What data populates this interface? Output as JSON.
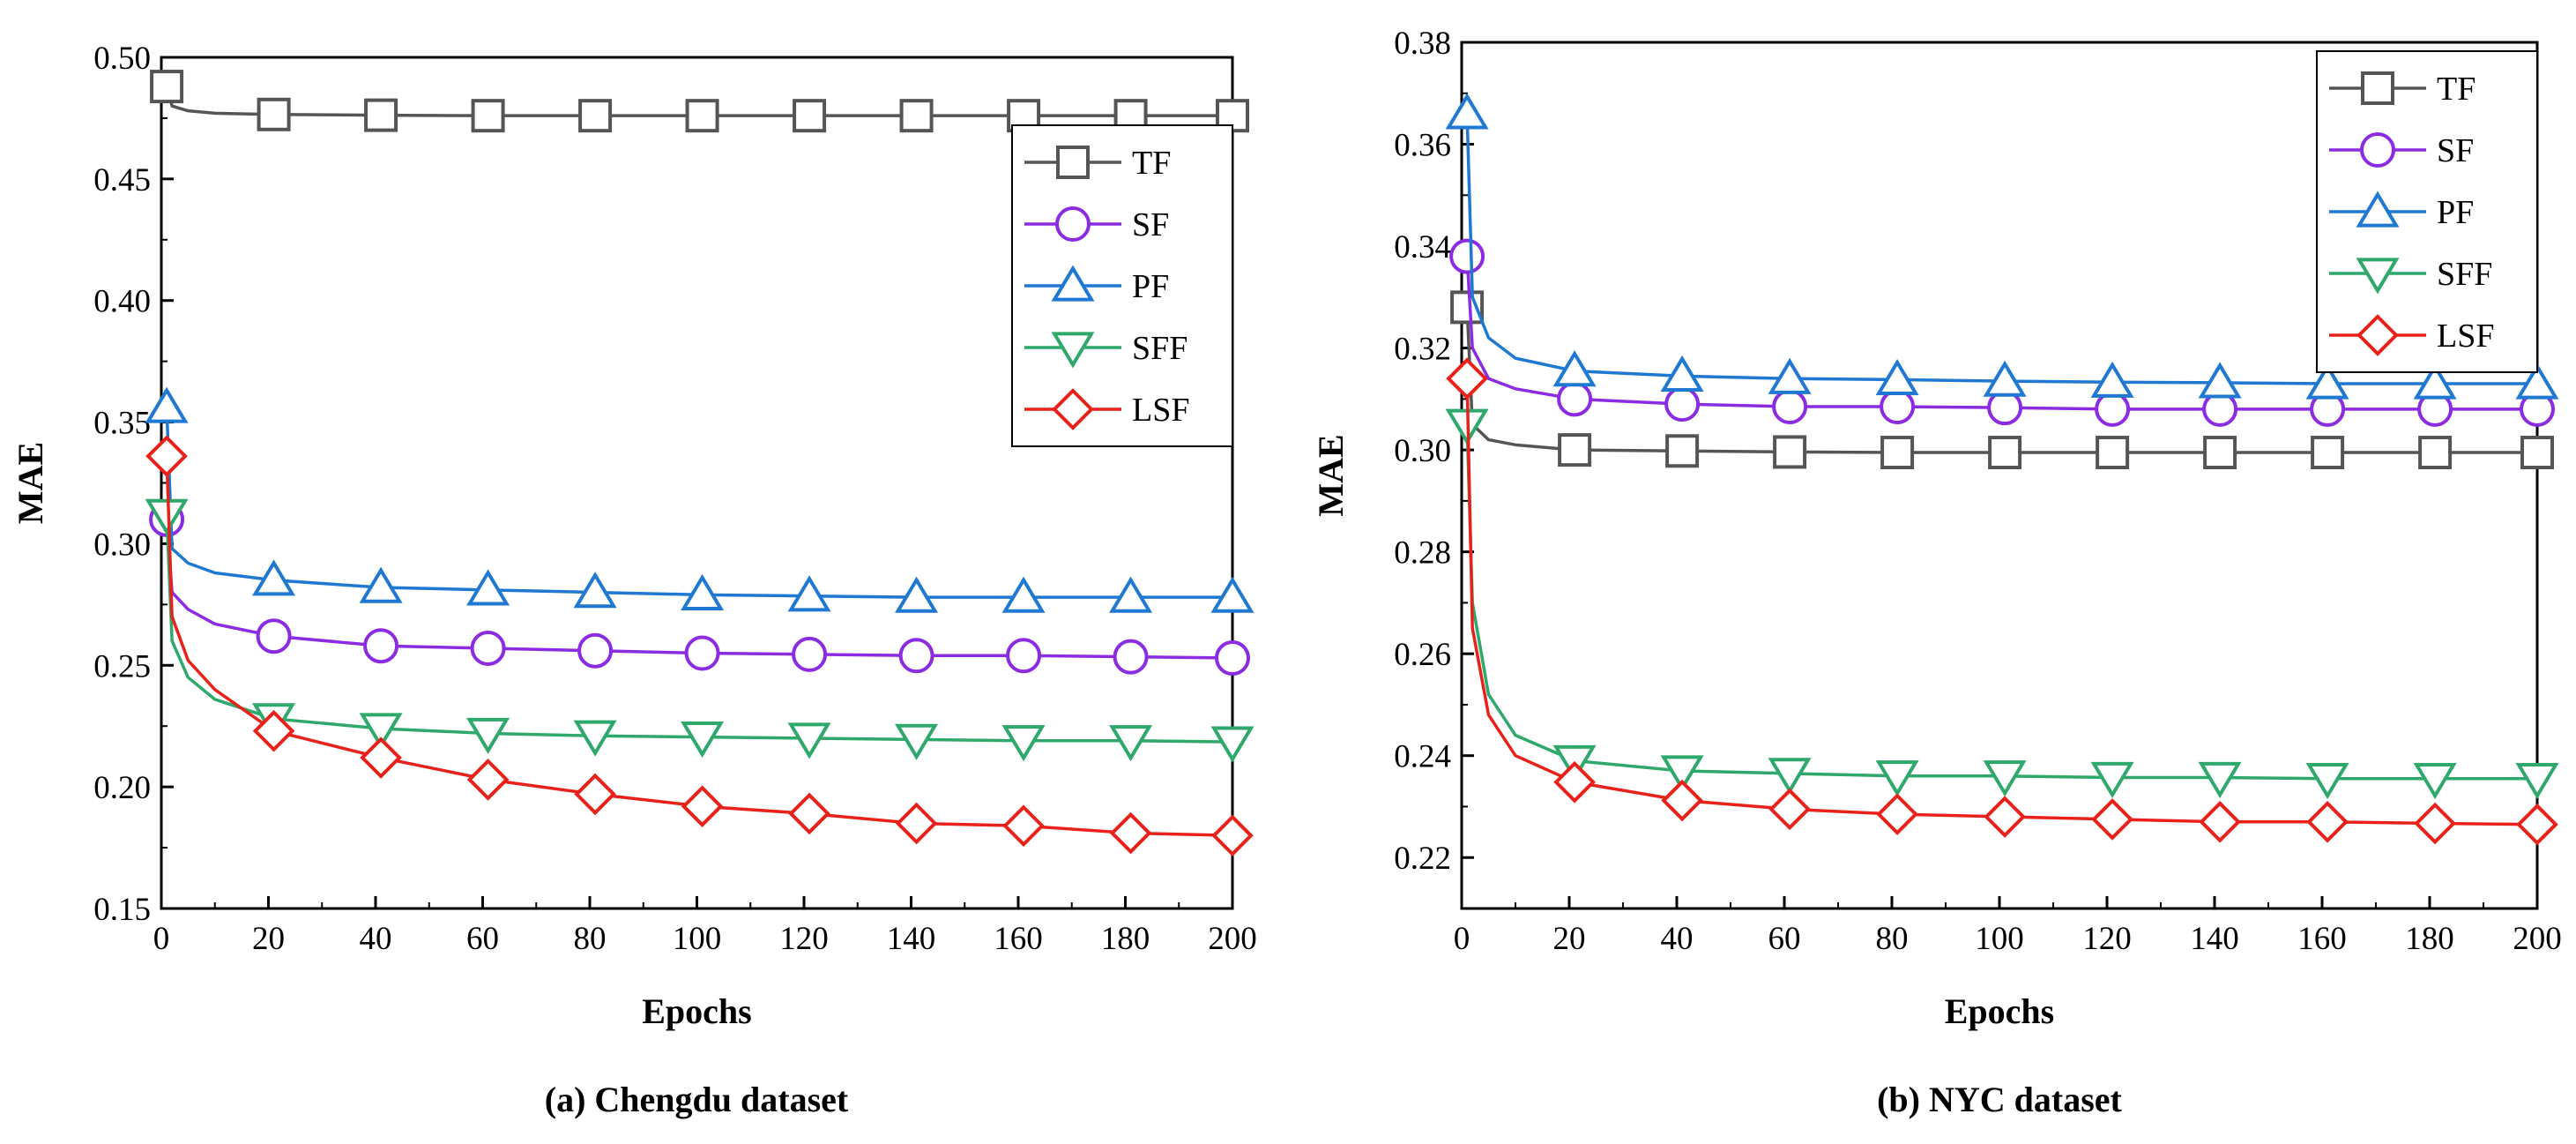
{
  "chart_data": [
    {
      "type": "line",
      "caption": "(a) Chengdu dataset",
      "xlabel": "Epochs",
      "ylabel": "MAE",
      "xlim": [
        0,
        200
      ],
      "ylim": [
        0.15,
        0.5
      ],
      "xticks": [
        0,
        20,
        40,
        60,
        80,
        100,
        120,
        140,
        160,
        180,
        200
      ],
      "yticks": [
        0.15,
        0.2,
        0.25,
        0.3,
        0.35,
        0.4,
        0.45,
        0.5
      ],
      "marker_x": [
        1,
        21,
        41,
        61,
        81,
        101,
        121,
        141,
        161,
        181,
        200
      ],
      "legend_position": "upper-right",
      "series": [
        {
          "name": "TF",
          "color": "#555555",
          "marker": "square",
          "start": 0.488,
          "x": [
            1,
            2,
            5,
            10,
            21,
            41,
            61,
            81,
            101,
            121,
            141,
            161,
            181,
            200
          ],
          "values": [
            0.488,
            0.48,
            0.478,
            0.477,
            0.4765,
            0.4762,
            0.476,
            0.476,
            0.476,
            0.476,
            0.476,
            0.476,
            0.476,
            0.476
          ],
          "marker_values": [
            0.488,
            0.4765,
            0.4762,
            0.476,
            0.476,
            0.476,
            0.476,
            0.476,
            0.476,
            0.476,
            0.476
          ]
        },
        {
          "name": "SF",
          "color": "#8b2be2",
          "marker": "circle",
          "start": 0.31,
          "x": [
            1,
            2,
            5,
            10,
            21,
            41,
            61,
            81,
            101,
            121,
            141,
            161,
            181,
            200
          ],
          "values": [
            0.31,
            0.28,
            0.273,
            0.267,
            0.262,
            0.258,
            0.257,
            0.256,
            0.255,
            0.2545,
            0.254,
            0.254,
            0.2535,
            0.253
          ],
          "marker_values": [
            0.31,
            0.262,
            0.258,
            0.257,
            0.256,
            0.255,
            0.2545,
            0.254,
            0.254,
            0.2535,
            0.253
          ]
        },
        {
          "name": "PF",
          "color": "#1f78d1",
          "marker": "triangle-up",
          "start": 0.356,
          "x": [
            1,
            2,
            5,
            10,
            21,
            41,
            61,
            81,
            101,
            121,
            141,
            161,
            181,
            200
          ],
          "values": [
            0.356,
            0.298,
            0.292,
            0.288,
            0.285,
            0.282,
            0.281,
            0.28,
            0.279,
            0.2785,
            0.278,
            0.278,
            0.278,
            0.278
          ],
          "marker_values": [
            0.356,
            0.285,
            0.282,
            0.281,
            0.28,
            0.279,
            0.2785,
            0.278,
            0.278,
            0.278,
            0.278
          ]
        },
        {
          "name": "SFF",
          "color": "#2ea86b",
          "marker": "triangle-down",
          "start": 0.312,
          "x": [
            1,
            2,
            5,
            10,
            21,
            41,
            61,
            81,
            101,
            121,
            141,
            161,
            181,
            200
          ],
          "values": [
            0.312,
            0.26,
            0.245,
            0.236,
            0.228,
            0.224,
            0.222,
            0.221,
            0.2205,
            0.22,
            0.2195,
            0.219,
            0.219,
            0.2185
          ],
          "marker_values": [
            0.312,
            0.228,
            0.224,
            0.222,
            0.221,
            0.2205,
            0.22,
            0.2195,
            0.219,
            0.219,
            0.2185
          ]
        },
        {
          "name": "LSF",
          "color": "#e8221b",
          "marker": "diamond",
          "start": 0.336,
          "x": [
            1,
            2,
            5,
            10,
            21,
            41,
            61,
            81,
            101,
            121,
            141,
            161,
            181,
            200
          ],
          "values": [
            0.336,
            0.27,
            0.252,
            0.24,
            0.223,
            0.212,
            0.203,
            0.197,
            0.192,
            0.189,
            0.185,
            0.184,
            0.181,
            0.18
          ],
          "marker_values": [
            0.336,
            0.223,
            0.212,
            0.203,
            0.197,
            0.192,
            0.189,
            0.185,
            0.184,
            0.181,
            0.18
          ]
        }
      ]
    },
    {
      "type": "line",
      "caption": "(b) NYC dataset",
      "xlabel": "Epochs",
      "ylabel": "MAE",
      "xlim": [
        0,
        200
      ],
      "ylim": [
        0.21,
        0.38
      ],
      "xticks": [
        0,
        20,
        40,
        60,
        80,
        100,
        120,
        140,
        160,
        180,
        200
      ],
      "yticks": [
        0.22,
        0.24,
        0.26,
        0.28,
        0.3,
        0.32,
        0.34,
        0.36,
        0.38
      ],
      "marker_x": [
        1,
        21,
        41,
        61,
        81,
        101,
        121,
        141,
        161,
        181,
        200
      ],
      "legend_position": "upper-right",
      "series": [
        {
          "name": "TF",
          "color": "#555555",
          "marker": "square",
          "start": 0.328,
          "x": [
            1,
            2,
            5,
            10,
            21,
            41,
            61,
            81,
            101,
            121,
            141,
            161,
            181,
            200
          ],
          "values": [
            0.328,
            0.305,
            0.302,
            0.301,
            0.3,
            0.2998,
            0.2996,
            0.2995,
            0.2995,
            0.2995,
            0.2995,
            0.2995,
            0.2995,
            0.2995
          ],
          "marker_values": [
            0.328,
            0.3,
            0.2998,
            0.2996,
            0.2995,
            0.2995,
            0.2995,
            0.2995,
            0.2995,
            0.2995,
            0.2995
          ]
        },
        {
          "name": "SF",
          "color": "#8b2be2",
          "marker": "circle",
          "start": 0.338,
          "x": [
            1,
            2,
            5,
            10,
            21,
            41,
            61,
            81,
            101,
            121,
            141,
            161,
            181,
            200
          ],
          "values": [
            0.338,
            0.32,
            0.314,
            0.312,
            0.31,
            0.309,
            0.3085,
            0.3085,
            0.3083,
            0.308,
            0.308,
            0.308,
            0.308,
            0.308
          ],
          "marker_values": [
            0.338,
            0.31,
            0.309,
            0.3085,
            0.3085,
            0.3083,
            0.308,
            0.308,
            0.308,
            0.308,
            0.308
          ]
        },
        {
          "name": "PF",
          "color": "#1f78d1",
          "marker": "triangle-up",
          "start": 0.366,
          "x": [
            1,
            2,
            5,
            10,
            21,
            41,
            61,
            81,
            101,
            121,
            141,
            161,
            181,
            200
          ],
          "values": [
            0.366,
            0.33,
            0.322,
            0.318,
            0.3155,
            0.3145,
            0.314,
            0.3138,
            0.3135,
            0.3133,
            0.3132,
            0.313,
            0.313,
            0.313
          ],
          "marker_values": [
            0.366,
            0.3155,
            0.3145,
            0.314,
            0.3138,
            0.3135,
            0.3133,
            0.3132,
            0.313,
            0.313,
            0.313
          ]
        },
        {
          "name": "SFF",
          "color": "#2ea86b",
          "marker": "triangle-down",
          "start": 0.305,
          "x": [
            1,
            2,
            5,
            10,
            21,
            41,
            61,
            81,
            101,
            121,
            141,
            161,
            181,
            200
          ],
          "values": [
            0.305,
            0.27,
            0.252,
            0.244,
            0.239,
            0.237,
            0.2365,
            0.236,
            0.236,
            0.2357,
            0.2357,
            0.2355,
            0.2355,
            0.2355
          ],
          "marker_values": [
            0.305,
            0.239,
            0.237,
            0.2365,
            0.236,
            0.236,
            0.2357,
            0.2357,
            0.2355,
            0.2355,
            0.2355
          ]
        },
        {
          "name": "LSF",
          "color": "#e8221b",
          "marker": "diamond",
          "start": 0.314,
          "x": [
            1,
            2,
            5,
            10,
            21,
            41,
            61,
            81,
            101,
            121,
            141,
            161,
            181,
            200
          ],
          "values": [
            0.314,
            0.265,
            0.248,
            0.24,
            0.2348,
            0.2312,
            0.2295,
            0.2285,
            0.228,
            0.2275,
            0.227,
            0.227,
            0.2267,
            0.2265
          ],
          "marker_values": [
            0.314,
            0.2348,
            0.2312,
            0.2295,
            0.2285,
            0.228,
            0.2275,
            0.227,
            0.227,
            0.2267,
            0.2265
          ]
        }
      ]
    }
  ]
}
